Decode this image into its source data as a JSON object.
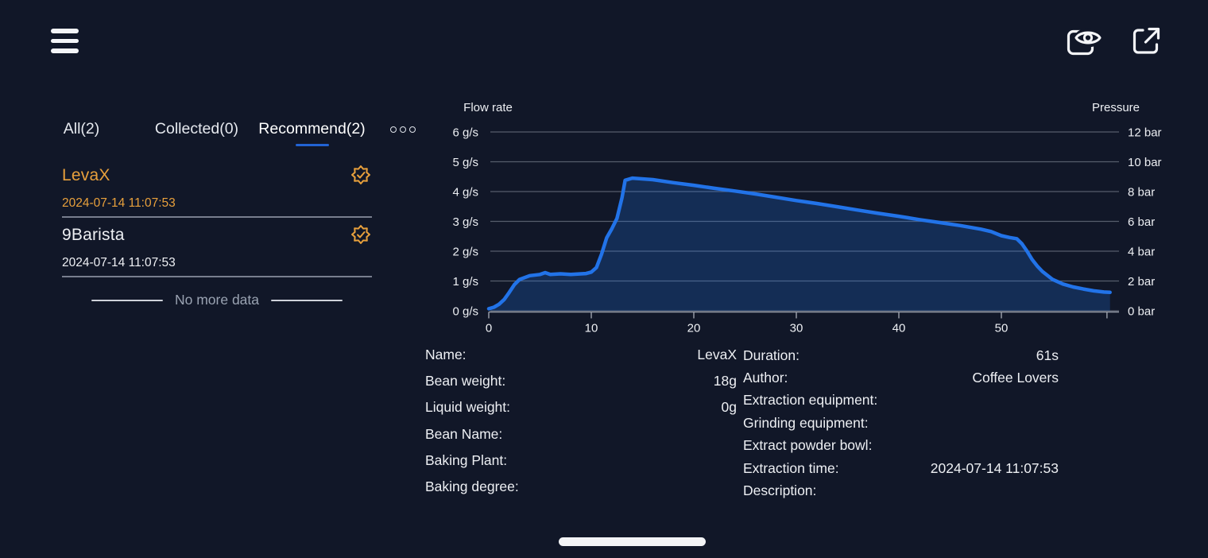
{
  "colors": {
    "background": "#111728",
    "accent_orange": "#e8a03c",
    "accent_blue": "#2273e8",
    "tab_underline": "#2263d4",
    "gridline": "#565d6c",
    "axis": "#959aa6"
  },
  "topbar": {
    "icons": [
      {
        "name": "menu-icon"
      },
      {
        "name": "preview-eye-icon"
      },
      {
        "name": "export-icon"
      }
    ]
  },
  "left_panel": {
    "tabs": [
      {
        "label": "All(2)",
        "active": false
      },
      {
        "label": "Collected(0)",
        "active": false
      },
      {
        "label": "Recommend(2)",
        "active": true
      }
    ],
    "more_icon": "ellipsis-icon",
    "items": [
      {
        "name": "LevaX",
        "date": "2024-07-14 11:07:53",
        "highlight": true,
        "badge_icon": "certified-badge-icon"
      },
      {
        "name": "9Barista",
        "date": "2024-07-14 11:07:53",
        "highlight": false,
        "badge_icon": "certified-badge-icon"
      }
    ],
    "no_more_text": "No more data"
  },
  "chart_data": {
    "type": "line",
    "left_axis": {
      "title": "Flow rate",
      "unit": "g/s",
      "min": 0,
      "max": 6,
      "ticks": [
        0,
        1,
        2,
        3,
        4,
        5,
        6
      ]
    },
    "right_axis": {
      "title": "Pressure",
      "unit": "bar",
      "min": 0,
      "max": 12,
      "ticks": [
        0,
        2,
        4,
        6,
        8,
        10,
        12
      ]
    },
    "x_axis": {
      "ticks": [
        0,
        10,
        20,
        30,
        40,
        50
      ],
      "max": 61.5,
      "end_tick": 60.3
    },
    "grid": true,
    "legend": "none",
    "series": [
      {
        "name": "Flow rate",
        "color": "#2273e8",
        "fill": "rgba(34,115,232,0.24)",
        "x": [
          0,
          0.5,
          1,
          1.5,
          2,
          2.5,
          3,
          4,
          5,
          5.5,
          6,
          7,
          8,
          9,
          9.5,
          10,
          10.5,
          11,
          11.5,
          12,
          12.5,
          13,
          13.3,
          14,
          16,
          18,
          20,
          22,
          24,
          26,
          28,
          30,
          32,
          34,
          36,
          38,
          40,
          42,
          44,
          46,
          48,
          49,
          50,
          50.8,
          51.5,
          52,
          52.5,
          53,
          53.5,
          54,
          55,
          56,
          57,
          58,
          59,
          60,
          60.6
        ],
        "y": [
          0.07,
          0.12,
          0.22,
          0.38,
          0.62,
          0.88,
          1.05,
          1.18,
          1.22,
          1.28,
          1.22,
          1.24,
          1.22,
          1.24,
          1.25,
          1.3,
          1.45,
          1.9,
          2.45,
          2.75,
          3.1,
          3.8,
          4.38,
          4.45,
          4.4,
          4.3,
          4.21,
          4.11,
          4.02,
          3.92,
          3.81,
          3.7,
          3.6,
          3.49,
          3.38,
          3.27,
          3.17,
          3.06,
          2.96,
          2.86,
          2.74,
          2.66,
          2.52,
          2.46,
          2.42,
          2.25,
          2.0,
          1.72,
          1.5,
          1.32,
          1.05,
          0.9,
          0.8,
          0.73,
          0.67,
          0.63,
          0.62
        ]
      }
    ]
  },
  "details": {
    "left": [
      {
        "label": "Name:",
        "value": "LevaX"
      },
      {
        "label": "Bean weight:",
        "value": "18g"
      },
      {
        "label": "Liquid weight:",
        "value": "0g"
      },
      {
        "label": "Bean Name:",
        "value": ""
      },
      {
        "label": "Baking Plant:",
        "value": ""
      },
      {
        "label": "Baking degree:",
        "value": ""
      }
    ],
    "right": [
      {
        "label": "Duration:",
        "value": "61s"
      },
      {
        "label": "Author:",
        "value": "Coffee Lovers"
      },
      {
        "label": "Extraction equipment:",
        "value": ""
      },
      {
        "label": "Grinding equipment:",
        "value": ""
      },
      {
        "label": "Extract powder bowl:",
        "value": ""
      },
      {
        "label": "Extraction time:",
        "value": "2024-07-14 11:07:53"
      },
      {
        "label": "Description:",
        "value": ""
      }
    ]
  }
}
